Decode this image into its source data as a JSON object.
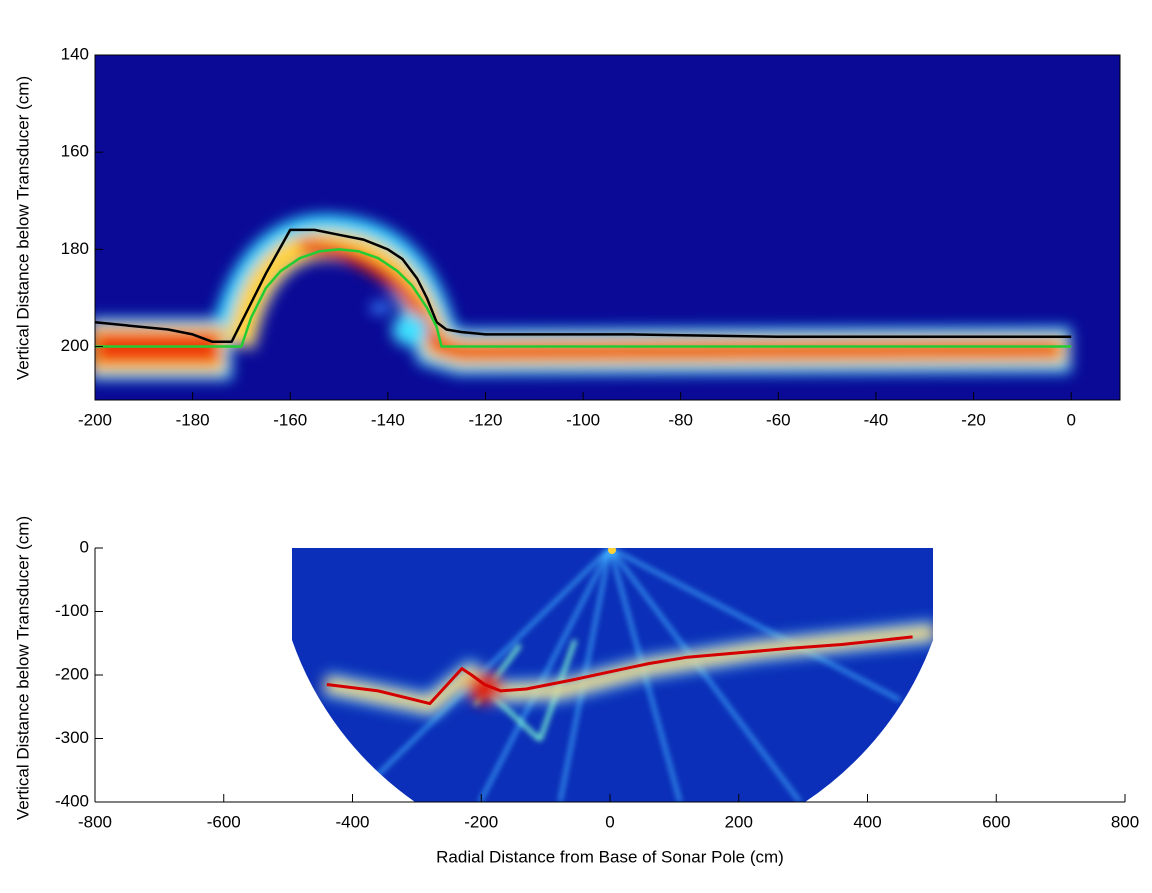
{
  "chart_data": [
    {
      "type": "line",
      "ylabel": "Vertical Distance below Transducer (cm)",
      "xlim": [
        -200,
        10
      ],
      "ylim": [
        140,
        211
      ],
      "yreverse": true,
      "box": true,
      "xticks": [
        -200,
        -180,
        -160,
        -140,
        -120,
        -100,
        -80,
        -60,
        -40,
        -20,
        0
      ],
      "yticks": [
        140,
        160,
        180,
        200
      ],
      "series": [
        {
          "color": "#000000",
          "x": [
            -200,
            -190,
            -185,
            -180,
            -176,
            -172,
            -165,
            -160,
            -155,
            -150,
            -145,
            -140,
            -137,
            -134,
            -132,
            -130,
            -128,
            -125,
            -120,
            -90,
            -60,
            -30,
            0
          ],
          "values": [
            195,
            196,
            196.5,
            197.5,
            199,
            199,
            185,
            176,
            176,
            177,
            178,
            180,
            182,
            186,
            190,
            195,
            196.5,
            197,
            197.5,
            197.5,
            198,
            198,
            198
          ]
        },
        {
          "color": "#22cc33",
          "x": [
            -200,
            -170,
            -168,
            -165,
            -162,
            -158,
            -154,
            -150,
            -146,
            -142,
            -138,
            -135,
            -132,
            -130,
            -129,
            -100,
            -50,
            0
          ],
          "values": [
            200,
            200,
            194,
            188,
            184.5,
            181.8,
            180.4,
            180,
            180.4,
            181.8,
            184.5,
            187.5,
            192,
            196,
            200,
            200,
            200,
            200
          ]
        }
      ]
    },
    {
      "type": "line",
      "xlabel": "Radial Distance from Base of Sonar Pole (cm)",
      "ylabel": "Vertical Distance below Transducer (cm)",
      "xlim": [
        -800,
        800
      ],
      "ylim": [
        -400,
        0
      ],
      "box": false,
      "xticks": [
        -800,
        -600,
        -400,
        -200,
        0,
        200,
        400,
        600,
        800
      ],
      "yticks": [
        0,
        -100,
        -200,
        -300,
        -400
      ],
      "series": [
        {
          "color": "#d40000",
          "x": [
            -440,
            -360,
            -280,
            -230,
            -215,
            -195,
            -170,
            -130,
            -60,
            0,
            60,
            120,
            200,
            280,
            360,
            470
          ],
          "values": [
            -215,
            -225,
            -245,
            -190,
            -200,
            -215,
            -225,
            -222,
            -208,
            -195,
            -182,
            -172,
            -165,
            -158,
            -152,
            -140
          ]
        }
      ]
    }
  ]
}
